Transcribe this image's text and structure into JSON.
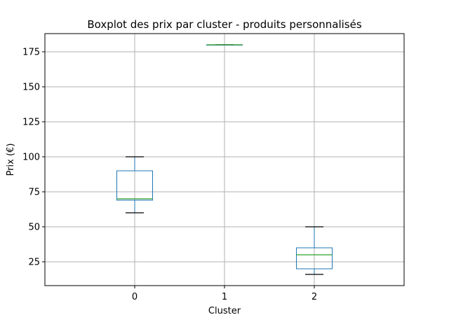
{
  "chart_data": {
    "type": "boxplot",
    "title": "Boxplot des prix par cluster - produits personnalisés",
    "xlabel": "Cluster",
    "ylabel": "Prix (€)",
    "categories": [
      "0",
      "1",
      "2"
    ],
    "boxes": [
      {
        "category": "0",
        "whisker_low": 60,
        "q1": 69,
        "median": 70,
        "q3": 90,
        "whisker_high": 100
      },
      {
        "category": "1",
        "whisker_low": 180,
        "q1": 180,
        "median": 180,
        "q3": 180,
        "whisker_high": 180
      },
      {
        "category": "2",
        "whisker_low": 16,
        "q1": 20,
        "median": 30,
        "q3": 35,
        "whisker_high": 50
      }
    ],
    "ylim": [
      8,
      188
    ],
    "yticks": [
      25,
      50,
      75,
      100,
      125,
      150,
      175
    ],
    "ytick_labels": [
      "25",
      "50",
      "75",
      "100",
      "125",
      "150",
      "175"
    ],
    "grid": true,
    "colors": {
      "box": "#1f77b4",
      "median": "#2ca02c",
      "whisker": "#1f77b4",
      "cap": "#000000",
      "grid": "#b0b0b0"
    }
  }
}
